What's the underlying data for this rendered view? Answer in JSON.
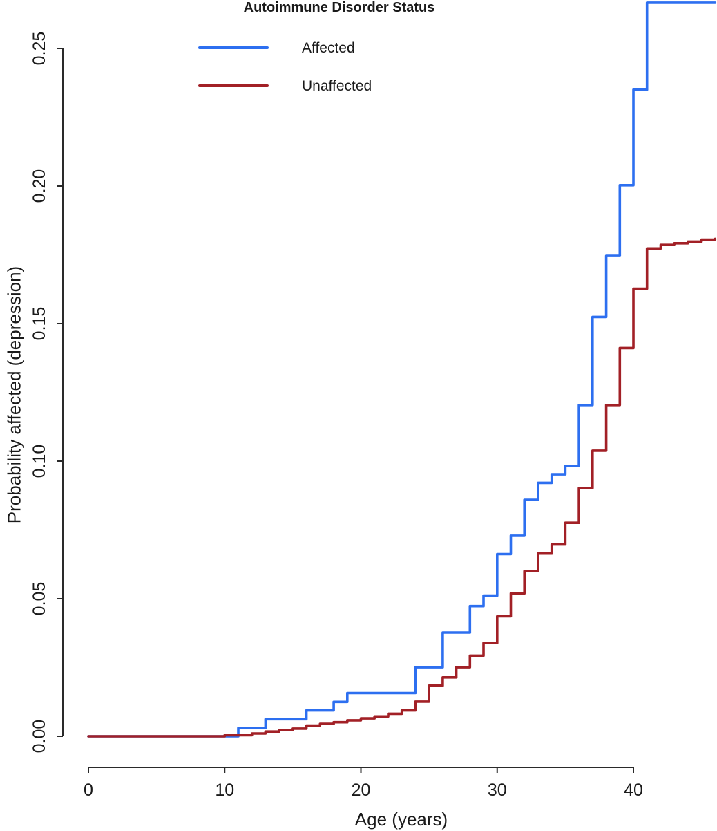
{
  "chart_data": {
    "type": "line",
    "style": "step (cumulative incidence curves)",
    "title": "",
    "xlabel": "Age (years)",
    "ylabel": "Probability affected (depression)",
    "xlim": [
      0,
      46
    ],
    "ylim": [
      0,
      0.27
    ],
    "grid": false,
    "x_ticks": [
      {
        "value": 0,
        "label": "0"
      },
      {
        "value": 10,
        "label": "10"
      },
      {
        "value": 20,
        "label": "20"
      },
      {
        "value": 30,
        "label": "30"
      },
      {
        "value": 40,
        "label": "40"
      }
    ],
    "y_ticks": [
      {
        "value": 0.0,
        "label": "0.00"
      },
      {
        "value": 0.05,
        "label": "0.05"
      },
      {
        "value": 0.1,
        "label": "0.10"
      },
      {
        "value": 0.15,
        "label": "0.15"
      },
      {
        "value": 0.2,
        "label": "0.20"
      },
      {
        "value": 0.25,
        "label": "0.25"
      }
    ],
    "legend": {
      "title": "Autoimmune Disorder Status",
      "position": "top",
      "entries": [
        {
          "name": "Affected",
          "color": "#2d6ff0"
        },
        {
          "name": "Unaffected",
          "color": "#a22026"
        }
      ]
    },
    "series": [
      {
        "name": "Affected",
        "color": "#2d6ff0",
        "note": "step points: probability reached at each age, flat until next age",
        "steps": [
          [
            0,
            0
          ],
          [
            11,
            0.003
          ],
          [
            13,
            0.0062
          ],
          [
            16,
            0.0094
          ],
          [
            18,
            0.0125
          ],
          [
            19,
            0.0157
          ],
          [
            24,
            0.0251
          ],
          [
            26,
            0.0377
          ],
          [
            28,
            0.0473
          ],
          [
            29,
            0.0511
          ],
          [
            30,
            0.0662
          ],
          [
            31,
            0.0729
          ],
          [
            32,
            0.0859
          ],
          [
            33,
            0.0921
          ],
          [
            34,
            0.0952
          ],
          [
            35,
            0.0982
          ],
          [
            36,
            0.1204
          ],
          [
            37,
            0.1524
          ],
          [
            38,
            0.1746
          ],
          [
            39,
            0.2003
          ],
          [
            40,
            0.235
          ],
          [
            41,
            0.2666
          ],
          [
            46,
            0.2666
          ]
        ]
      },
      {
        "name": "Unaffected",
        "color": "#a22026",
        "note": "step points: probability reached at each age, flat until next age",
        "steps": [
          [
            0,
            0
          ],
          [
            10,
            0.0004
          ],
          [
            12,
            0.001
          ],
          [
            13,
            0.0017
          ],
          [
            14,
            0.0022
          ],
          [
            15,
            0.0028
          ],
          [
            16,
            0.0039
          ],
          [
            17,
            0.0045
          ],
          [
            18,
            0.0051
          ],
          [
            19,
            0.0058
          ],
          [
            20,
            0.0065
          ],
          [
            21,
            0.0072
          ],
          [
            22,
            0.0082
          ],
          [
            23,
            0.0094
          ],
          [
            24,
            0.0126
          ],
          [
            25,
            0.0184
          ],
          [
            26,
            0.0214
          ],
          [
            27,
            0.0251
          ],
          [
            28,
            0.0293
          ],
          [
            29,
            0.0339
          ],
          [
            30,
            0.0436
          ],
          [
            31,
            0.0519
          ],
          [
            32,
            0.06
          ],
          [
            33,
            0.0664
          ],
          [
            34,
            0.0697
          ],
          [
            35,
            0.0776
          ],
          [
            36,
            0.0902
          ],
          [
            37,
            0.1038
          ],
          [
            38,
            0.1204
          ],
          [
            39,
            0.1411
          ],
          [
            40,
            0.1627
          ],
          [
            41,
            0.1773
          ],
          [
            42,
            0.1786
          ],
          [
            43,
            0.1792
          ],
          [
            44,
            0.1798
          ],
          [
            45,
            0.1805
          ],
          [
            46,
            0.1808
          ]
        ]
      }
    ],
    "colors": {
      "text": "#1a1a1a",
      "axis": "#2a2a2a",
      "background": "#ffffff"
    }
  }
}
